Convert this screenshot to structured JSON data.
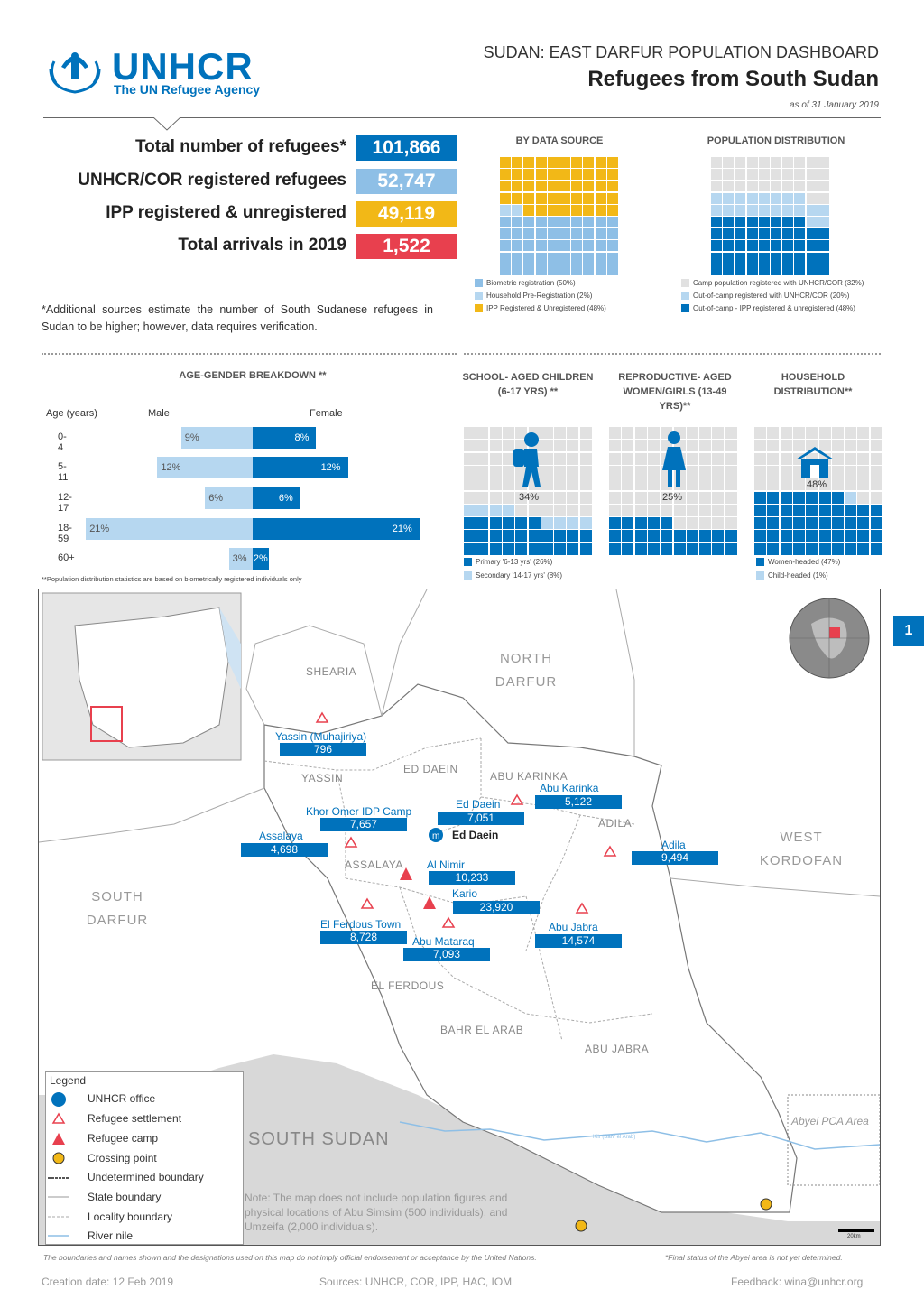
{
  "header": {
    "org_name": "UNHCR",
    "org_tagline": "The UN Refugee Agency",
    "super_title": "SUDAN: EAST DARFUR POPULATION DASHBOARD",
    "title": "Refugees from South Sudan",
    "date": "as of 31 January 2019"
  },
  "kpis": [
    {
      "label": "Total number of refugees*",
      "value": "101,866",
      "color": "#0072bc"
    },
    {
      "label": "UNHCR/COR registered refugees",
      "value": "52,747",
      "color": "#8ebfe6"
    },
    {
      "label": "IPP registered & unregistered",
      "value": "49,119",
      "color": "#f2b817"
    },
    {
      "label": "Total arrivals in 2019",
      "value": "1,522",
      "color": "#e8404e"
    }
  ],
  "note": "*Additional sources estimate the number of  South Sudanese refugees in Sudan to be higher; however, data requires verification.",
  "by_data_source": {
    "title": "BY DATA SOURCE",
    "legend": [
      {
        "label": "Biometric registration (50%)",
        "color": "#8ebfe6"
      },
      {
        "label": "Household Pre-Registration (2%)",
        "color": "#b6d7f0"
      },
      {
        "label": "IPP Registered & Unregistered (48%)",
        "color": "#f2b817"
      }
    ]
  },
  "population_distribution": {
    "title": "POPULATION DISTRIBUTION",
    "legend": [
      {
        "label": "Camp population registered with UNHCR/COR (32%)",
        "color": "#e1e1e1"
      },
      {
        "label": "Out-of-camp registered with UNHCR/COR (20%)",
        "color": "#b6d7f0"
      },
      {
        "label": "Out-of-camp - IPP registered & unregistered (48%)",
        "color": "#0072bc"
      }
    ]
  },
  "age_gender": {
    "title": "AGE-GENDER BREAKDOWN **",
    "col_age": "Age (years)",
    "col_male": "Male",
    "col_female": "Female",
    "rows": [
      {
        "age": "0-4",
        "male": 9,
        "female": 8,
        "male_label": "9%",
        "female_label": "8%"
      },
      {
        "age": "5-11",
        "male": 12,
        "female": 12,
        "male_label": "12%",
        "female_label": "12%"
      },
      {
        "age": "12-17",
        "male": 6,
        "female": 6,
        "male_label": "6%",
        "female_label": "6%"
      },
      {
        "age": "18-59",
        "male": 21,
        "female": 21,
        "male_label": "21%",
        "female_label": "21%"
      },
      {
        "age": "60+",
        "male": 3,
        "female": 2,
        "male_label": "3%",
        "female_label": "2%"
      }
    ],
    "footnote": "**Population distribution statistics are based on biometrically registered individuals only"
  },
  "school": {
    "title": "SCHOOL- AGED CHILDREN (6-17 YRS) **",
    "pct": "34%",
    "legend": [
      {
        "label": "Primary '6-13 yrs' (26%)",
        "color": "#0072bc"
      },
      {
        "label": "Secondary '14-17 yrs' (8%)",
        "color": "#b6d7f0"
      }
    ]
  },
  "reproductive": {
    "title": "REPRODUCTIVE- AGED WOMEN/GIRLS (13-49 YRS)**",
    "pct": "25%"
  },
  "household": {
    "title": "HOUSEHOLD DISTRIBUTION**",
    "pct": "48%",
    "legend": [
      {
        "label": "Women-headed (47%)",
        "color": "#0072bc"
      },
      {
        "label": "Child-headed (1%)",
        "color": "#b6d7f0"
      }
    ]
  },
  "map": {
    "page_badge": "1",
    "regions": [
      "NORTH DARFUR",
      "WEST KORDOFAN",
      "SOUTH DARFUR",
      "SOUTH SUDAN"
    ],
    "localities": [
      "SHEARIA",
      "YASSIN",
      "ED DAEIN",
      "ABU KARINKA",
      "ADILA",
      "ASSALAYA",
      "EL FERDOUS",
      "BAHR EL ARAB",
      "ABU JABRA"
    ],
    "office": "Ed Daein",
    "abyei": "Abyei PCA Area",
    "river": "Kiir (Bahr el Arab)",
    "scale": "20km",
    "note": "Note: The map does not include population figures and physical locations of Abu Simsim (500 individuals), and Umzeifa (2,000 individuals).",
    "sites": [
      {
        "name": "Yassin (Muhajiriya)",
        "value": "796"
      },
      {
        "name": "Khor Omer IDP Camp",
        "value": "7,657"
      },
      {
        "name": "Ed Daein",
        "value": "7,051"
      },
      {
        "name": "Abu Karinka",
        "value": "5,122"
      },
      {
        "name": "Assalaya",
        "value": "4,698"
      },
      {
        "name": "Adila",
        "value": "9,494"
      },
      {
        "name": "Al Nimir",
        "value": "10,233"
      },
      {
        "name": "Kario",
        "value": "23,920"
      },
      {
        "name": "El Ferdous Town",
        "value": "8,728"
      },
      {
        "name": "Abu Mataraq",
        "value": "7,093"
      },
      {
        "name": "Abu Jabra",
        "value": "14,574"
      }
    ],
    "legend_title": "Legend",
    "legend": [
      "UNHCR office",
      "Refugee settlement",
      "Refugee camp",
      "Crossing point",
      "Undetermined boundary",
      "State boundary",
      "Locality boundary",
      "River nile"
    ]
  },
  "disclaimer_left": "The boundaries and names shown and the designations used on this map do not imply official endorsement or acceptance by the United Nations.",
  "disclaimer_right": "*Final status of the Abyei area is not yet determined.",
  "footer": {
    "created": "Creation date: 12 Feb 2019",
    "sources": "Sources: UNHCR, COR, IPP, HAC, IOM",
    "feedback": "Feedback: wina@unhcr.org"
  }
}
